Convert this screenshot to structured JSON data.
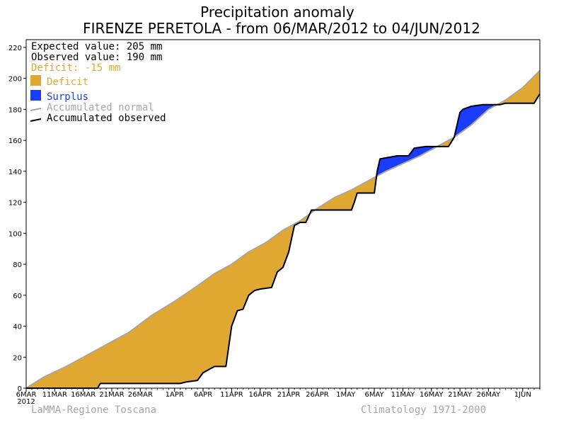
{
  "chart_data": {
    "type": "area",
    "title": "Precipitation anomaly",
    "subtitle": "FIRENZE PERETOLA - from 06/MAR/2012 to 04/JUN/2012",
    "xlabel": "",
    "ylabel": "",
    "ylim": [
      0,
      225
    ],
    "yticks": [
      0,
      20,
      40,
      60,
      80,
      100,
      120,
      140,
      160,
      180,
      200,
      220
    ],
    "x_range_days": [
      0,
      90
    ],
    "x_ticks": [
      {
        "day": 0,
        "label": "6MAR"
      },
      {
        "day": 5,
        "label": "11MAR"
      },
      {
        "day": 10,
        "label": "16MAR"
      },
      {
        "day": 15,
        "label": "21MAR"
      },
      {
        "day": 20,
        "label": "26MAR"
      },
      {
        "day": 26,
        "label": "1APR"
      },
      {
        "day": 31,
        "label": "6APR"
      },
      {
        "day": 36,
        "label": "11APR"
      },
      {
        "day": 41,
        "label": "16APR"
      },
      {
        "day": 46,
        "label": "21APR"
      },
      {
        "day": 51,
        "label": "26APR"
      },
      {
        "day": 56,
        "label": "1MAY"
      },
      {
        "day": 61,
        "label": "6MAY"
      },
      {
        "day": 66,
        "label": "11MAY"
      },
      {
        "day": 71,
        "label": "16MAY"
      },
      {
        "day": 76,
        "label": "21MAY"
      },
      {
        "day": 81,
        "label": "26MAY"
      },
      {
        "day": 87,
        "label": "1JUN"
      }
    ],
    "x_year_label": "2012",
    "stats": {
      "expected": "Expected value: 205 mm",
      "observed": "Observed value: 190 mm",
      "deficit": "Deficit: -15 mm"
    },
    "legend": [
      {
        "label": "Deficit",
        "color": "#e1a831",
        "kind": "box"
      },
      {
        "label": "Surplus",
        "color": "#1a3cff",
        "kind": "box"
      },
      {
        "label": "Accumulated normal",
        "color": "#a6a6a6",
        "kind": "line"
      },
      {
        "label": "Accumulated observed",
        "color": "#000000",
        "kind": "line"
      }
    ],
    "colors": {
      "deficit": "#e1a831",
      "surplus": "#1a3cff",
      "normal": "#a6a6a6",
      "observed": "#000000"
    },
    "series": [
      {
        "name": "Accumulated normal",
        "points": [
          [
            0,
            0
          ],
          [
            3,
            7
          ],
          [
            7,
            14
          ],
          [
            10,
            20
          ],
          [
            14,
            28
          ],
          [
            18,
            36
          ],
          [
            22,
            47
          ],
          [
            26,
            56
          ],
          [
            30,
            66
          ],
          [
            33,
            74
          ],
          [
            36,
            80
          ],
          [
            39,
            88
          ],
          [
            42,
            94
          ],
          [
            45,
            102
          ],
          [
            48,
            108
          ],
          [
            51,
            116
          ],
          [
            54,
            123
          ],
          [
            57,
            128
          ],
          [
            60,
            134
          ],
          [
            63,
            140
          ],
          [
            66,
            145
          ],
          [
            69,
            150
          ],
          [
            72,
            156
          ],
          [
            75,
            162
          ],
          [
            78,
            170
          ],
          [
            81,
            180
          ],
          [
            84,
            186
          ],
          [
            87,
            194
          ],
          [
            90,
            205
          ]
        ]
      },
      {
        "name": "Accumulated observed",
        "points": [
          [
            0,
            0
          ],
          [
            12.5,
            0
          ],
          [
            13,
            3
          ],
          [
            27,
            3
          ],
          [
            28,
            4
          ],
          [
            30,
            5
          ],
          [
            31,
            10
          ],
          [
            33,
            14
          ],
          [
            35,
            14
          ],
          [
            36,
            40
          ],
          [
            37,
            50
          ],
          [
            38,
            51
          ],
          [
            39,
            60
          ],
          [
            40,
            63
          ],
          [
            41,
            64
          ],
          [
            43,
            65
          ],
          [
            44,
            75
          ],
          [
            45,
            78
          ],
          [
            46,
            88
          ],
          [
            47,
            105
          ],
          [
            48,
            107
          ],
          [
            49,
            107
          ],
          [
            50,
            115
          ],
          [
            57,
            115
          ],
          [
            57.5,
            120
          ],
          [
            58,
            126
          ],
          [
            61,
            126
          ],
          [
            61.5,
            140
          ],
          [
            62,
            148
          ],
          [
            65,
            150
          ],
          [
            67,
            150
          ],
          [
            68,
            155
          ],
          [
            70,
            156
          ],
          [
            74,
            156
          ],
          [
            75,
            162
          ],
          [
            75.5,
            170
          ],
          [
            76,
            178
          ],
          [
            76.5,
            180
          ],
          [
            78,
            182
          ],
          [
            80,
            183
          ],
          [
            83,
            183
          ],
          [
            84,
            184
          ],
          [
            89,
            184
          ],
          [
            90,
            190
          ]
        ]
      }
    ]
  },
  "footer": {
    "left": "LaMMA-Regione Toscana",
    "right": "Climatology 1971-2000"
  }
}
